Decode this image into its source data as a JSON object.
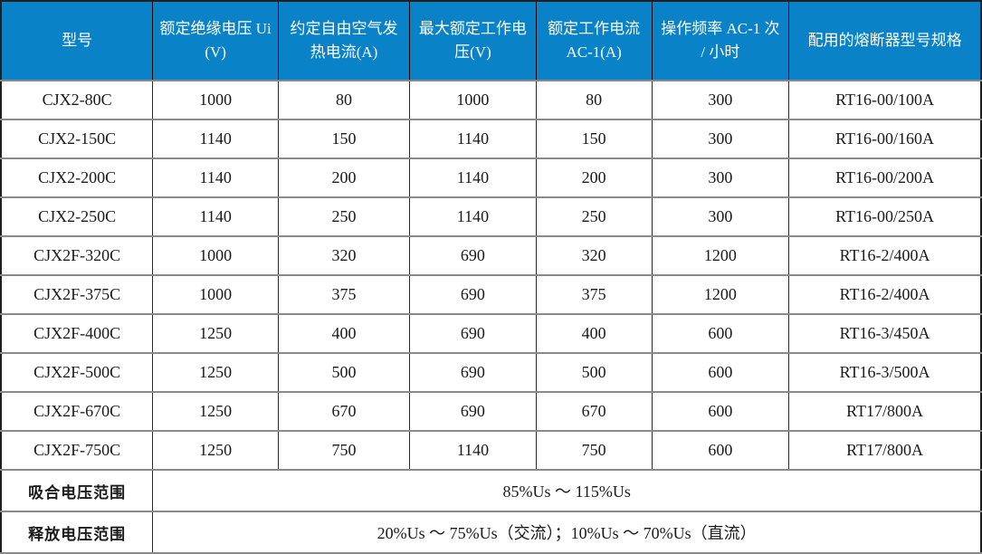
{
  "colors": {
    "header_bg": "#0a82c8",
    "header_text": "#ffffff",
    "body_text": "#1a1a1a",
    "grid_horizontal": "#8a8a8a",
    "grid_vertical": "#262626",
    "outer_border": "#1f1f1f"
  },
  "table": {
    "columns": [
      "型号",
      "额定绝缘电压 Ui(V)",
      "约定自由空气发热电流(A)",
      "最大额定工作电压(V)",
      "额定工作电流 AC-1(A)",
      "操作频率 AC-1 次 / 小时",
      "配用的熔断器型号规格"
    ],
    "rows": [
      [
        "CJX2-80C",
        "1000",
        "80",
        "1000",
        "80",
        "300",
        "RT16-00/100A"
      ],
      [
        "CJX2-150C",
        "1140",
        "150",
        "1140",
        "150",
        "300",
        "RT16-00/160A"
      ],
      [
        "CJX2-200C",
        "1140",
        "200",
        "1140",
        "200",
        "300",
        "RT16-00/200A"
      ],
      [
        "CJX2-250C",
        "1140",
        "250",
        "1140",
        "250",
        "300",
        "RT16-00/250A"
      ],
      [
        "CJX2F-320C",
        "1000",
        "320",
        "690",
        "320",
        "1200",
        "RT16-2/400A"
      ],
      [
        "CJX2F-375C",
        "1000",
        "375",
        "690",
        "375",
        "1200",
        "RT16-2/400A"
      ],
      [
        "CJX2F-400C",
        "1250",
        "400",
        "690",
        "400",
        "600",
        "RT16-3/450A"
      ],
      [
        "CJX2F-500C",
        "1250",
        "500",
        "690",
        "500",
        "600",
        "RT16-3/500A"
      ],
      [
        "CJX2F-670C",
        "1250",
        "670",
        "690",
        "670",
        "600",
        "RT17/800A"
      ],
      [
        "CJX2F-750C",
        "1250",
        "750",
        "1140",
        "750",
        "600",
        "RT17/800A"
      ]
    ],
    "footer_rows": [
      {
        "label": "吸合电压范围",
        "value": "85%Us ～ 115%Us"
      },
      {
        "label": "释放电压范围",
        "value": "20%Us ～ 75%Us（交流）；10%Us ～ 70%Us（直流）"
      }
    ]
  }
}
